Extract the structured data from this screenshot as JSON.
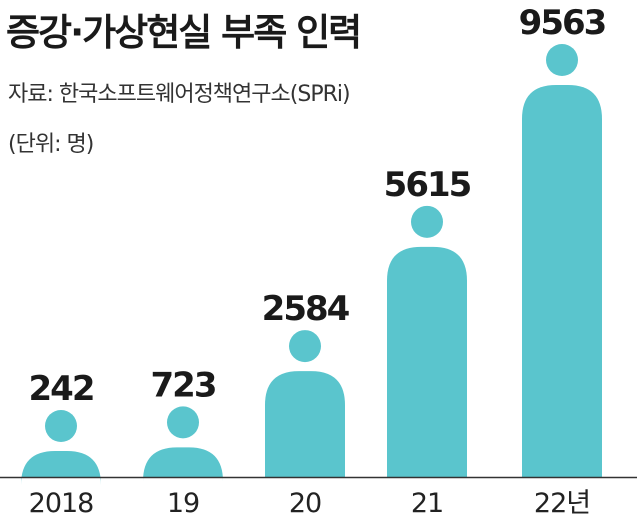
{
  "header": {
    "title": "증강·가상현실 부족 인력",
    "source": "자료: 한국소프트웨어정책연구소(SPRi)",
    "unit": "(단위: 명)"
  },
  "colors": {
    "figure": "#5ac5cd",
    "axis": "#333333",
    "value_text": "#1a1a1a"
  },
  "chart_data": {
    "type": "bar",
    "mark_style": "pictogram-person",
    "title": "증강·가상현실 부족 인력",
    "unit": "(단위: 명)",
    "categories": [
      "2018",
      "19",
      "20",
      "21",
      "22년"
    ],
    "values": [
      242,
      723,
      2584,
      5615,
      9563
    ],
    "value_labels": [
      "242",
      "723",
      "2584",
      "5615",
      "9563"
    ],
    "ylim": [
      0,
      9563
    ],
    "grid": false,
    "legend": "none"
  }
}
